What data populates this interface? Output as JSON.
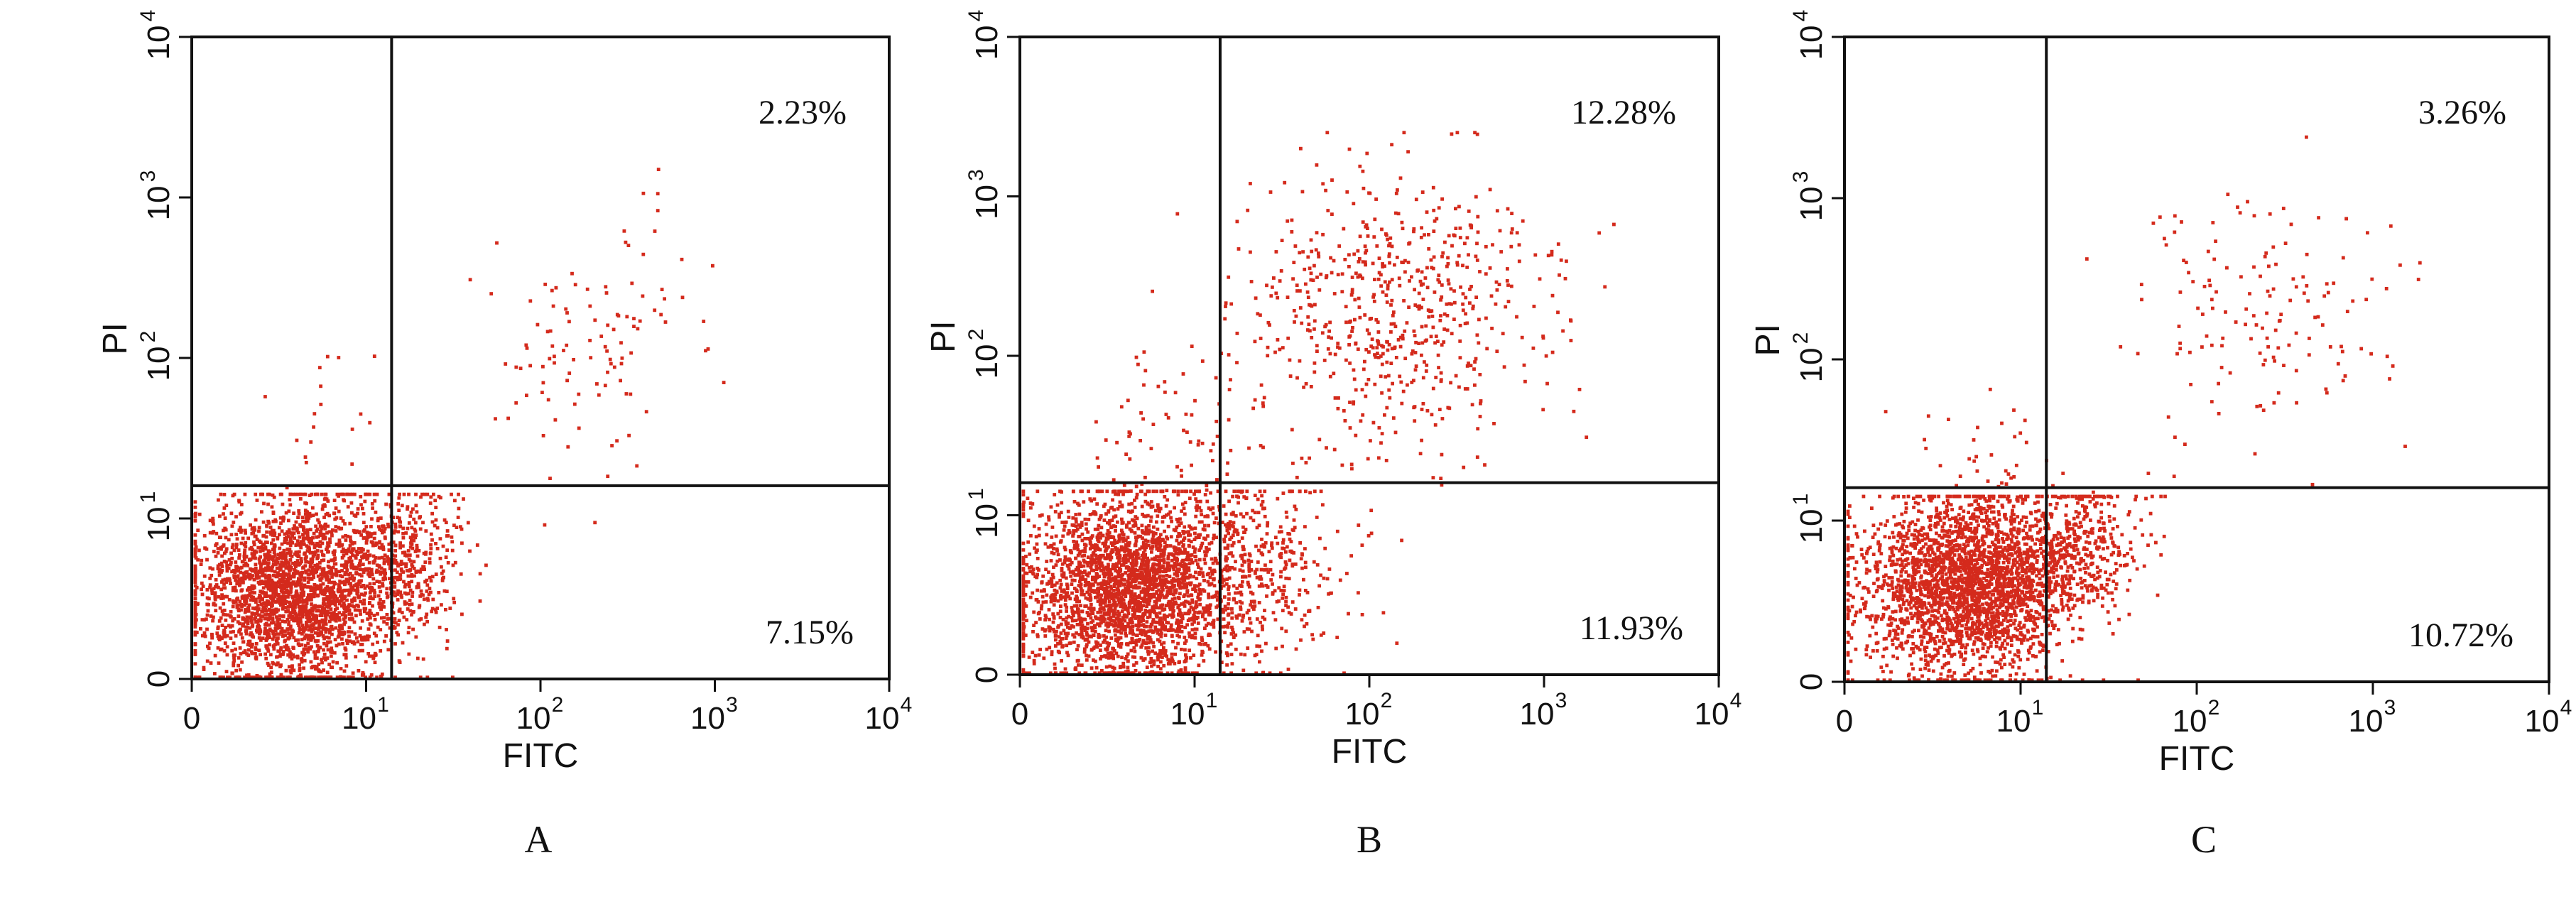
{
  "chart_data": [
    {
      "type": "scatter",
      "panel_label": "A",
      "xlabel": "FITC",
      "ylabel": "PI",
      "scale": "biexponential-log",
      "xlim": [
        0,
        10000
      ],
      "ylim": [
        0,
        10000
      ],
      "x_ticks": [
        "0",
        "10",
        "10",
        "10",
        "10"
      ],
      "x_tick_exponents": [
        "",
        "1",
        "2",
        "3",
        "4"
      ],
      "y_ticks": [
        "0",
        "10",
        "10",
        "10",
        "10"
      ],
      "y_tick_exponents": [
        "",
        "1",
        "2",
        "3",
        "4"
      ],
      "gate": {
        "x": 14,
        "y": 16
      },
      "quadrant_labels": {
        "upper_right": "2.23%",
        "lower_right": "7.15%"
      },
      "point_color": "#d42a1c",
      "populations": [
        {
          "region": "lower-left-main",
          "count": 2600,
          "x_center_log": 0.6,
          "y_center_log": 0.55,
          "x_spread_log": 0.3,
          "y_spread_log": 0.28
        },
        {
          "region": "lower-right-tail",
          "count": 330,
          "x_center_log": 1.25,
          "y_center_log": 0.75,
          "x_spread_log": 0.15,
          "y_spread_log": 0.22
        },
        {
          "region": "upper-right-cluster",
          "count": 110,
          "x_center_log": 2.3,
          "y_center_log": 2.1,
          "x_spread_log": 0.35,
          "y_spread_log": 0.4
        },
        {
          "region": "upper-left-scatter",
          "count": 18,
          "x_center_log": 0.75,
          "y_center_log": 1.6,
          "x_spread_log": 0.2,
          "y_spread_log": 0.2
        }
      ]
    },
    {
      "type": "scatter",
      "panel_label": "B",
      "xlabel": "FITC",
      "ylabel": "PI",
      "scale": "biexponential-log",
      "xlim": [
        0,
        10000
      ],
      "ylim": [
        0,
        10000
      ],
      "x_ticks": [
        "0",
        "10",
        "10",
        "10",
        "10"
      ],
      "x_tick_exponents": [
        "",
        "1",
        "2",
        "3",
        "4"
      ],
      "y_ticks": [
        "0",
        "10",
        "10",
        "10",
        "10"
      ],
      "y_tick_exponents": [
        "",
        "1",
        "2",
        "3",
        "4"
      ],
      "gate": {
        "x": 14,
        "y": 16
      },
      "quadrant_labels": {
        "upper_right": "12.28%",
        "lower_right": "11.93%"
      },
      "point_color": "#d42a1c",
      "populations": [
        {
          "region": "lower-left-main",
          "count": 2600,
          "x_center_log": 0.62,
          "y_center_log": 0.55,
          "x_spread_log": 0.3,
          "y_spread_log": 0.28
        },
        {
          "region": "lower-right-tail",
          "count": 380,
          "x_center_log": 1.35,
          "y_center_log": 0.65,
          "x_spread_log": 0.25,
          "y_spread_log": 0.3
        },
        {
          "region": "upper-right-cluster",
          "count": 650,
          "x_center_log": 2.1,
          "y_center_log": 2.3,
          "x_spread_log": 0.45,
          "y_spread_log": 0.45
        },
        {
          "region": "upper-left-scatter",
          "count": 80,
          "x_center_log": 0.85,
          "y_center_log": 1.4,
          "x_spread_log": 0.25,
          "y_spread_log": 0.3
        }
      ]
    },
    {
      "type": "scatter",
      "panel_label": "C",
      "xlabel": "FITC",
      "ylabel": "PI",
      "scale": "biexponential-log",
      "xlim": [
        0,
        10000
      ],
      "ylim": [
        0,
        10000
      ],
      "x_ticks": [
        "0",
        "10",
        "10",
        "10",
        "10"
      ],
      "x_tick_exponents": [
        "",
        "1",
        "2",
        "3",
        "4"
      ],
      "y_ticks": [
        "0",
        "10",
        "10",
        "10",
        "10"
      ],
      "y_tick_exponents": [
        "",
        "1",
        "2",
        "3",
        "4"
      ],
      "gate": {
        "x": 14,
        "y": 16
      },
      "quadrant_labels": {
        "upper_right": "3.26%",
        "lower_right": "10.72%"
      },
      "point_color": "#d42a1c",
      "populations": [
        {
          "region": "lower-left-main",
          "count": 2600,
          "x_center_log": 0.7,
          "y_center_log": 0.6,
          "x_spread_log": 0.3,
          "y_spread_log": 0.28
        },
        {
          "region": "lower-right-tail",
          "count": 400,
          "x_center_log": 1.3,
          "y_center_log": 0.85,
          "x_spread_log": 0.2,
          "y_spread_log": 0.22
        },
        {
          "region": "upper-right-cluster",
          "count": 150,
          "x_center_log": 2.35,
          "y_center_log": 2.3,
          "x_spread_log": 0.4,
          "y_spread_log": 0.45
        },
        {
          "region": "upper-left-scatter",
          "count": 40,
          "x_center_log": 0.8,
          "y_center_log": 1.4,
          "x_spread_log": 0.2,
          "y_spread_log": 0.2
        }
      ]
    }
  ]
}
